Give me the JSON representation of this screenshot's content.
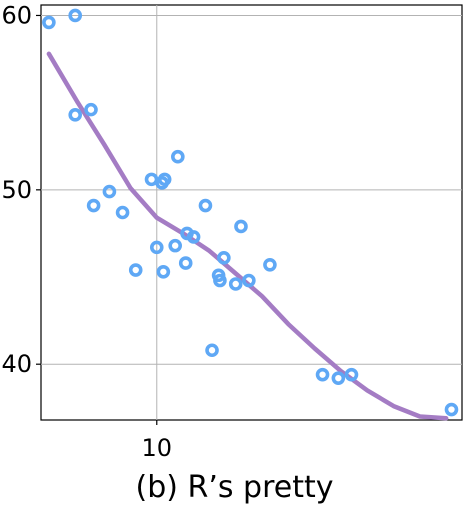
{
  "chart_data": {
    "type": "scatter",
    "caption": "(b) R’s pretty",
    "xlim": [
      5.6,
      21.6
    ],
    "ylim": [
      36.8,
      60.6
    ],
    "x_ticks": [
      10
    ],
    "y_ticks": [
      40,
      50,
      60
    ],
    "grid": true,
    "points_color": "#5fa8f5",
    "line_color": "#a47cc4",
    "points": [
      {
        "x": 5.9,
        "y": 59.6
      },
      {
        "x": 6.9,
        "y": 60.0
      },
      {
        "x": 6.9,
        "y": 54.3
      },
      {
        "x": 7.5,
        "y": 54.6
      },
      {
        "x": 7.6,
        "y": 49.1
      },
      {
        "x": 8.2,
        "y": 49.9
      },
      {
        "x": 8.7,
        "y": 48.7
      },
      {
        "x": 9.2,
        "y": 45.4
      },
      {
        "x": 9.8,
        "y": 50.6
      },
      {
        "x": 10.0,
        "y": 46.7
      },
      {
        "x": 10.2,
        "y": 50.4
      },
      {
        "x": 10.25,
        "y": 45.3
      },
      {
        "x": 10.3,
        "y": 50.6
      },
      {
        "x": 10.7,
        "y": 46.8
      },
      {
        "x": 10.8,
        "y": 51.9
      },
      {
        "x": 11.1,
        "y": 45.8
      },
      {
        "x": 11.15,
        "y": 47.5
      },
      {
        "x": 11.4,
        "y": 47.3
      },
      {
        "x": 11.85,
        "y": 49.1
      },
      {
        "x": 12.1,
        "y": 40.8
      },
      {
        "x": 12.35,
        "y": 45.1
      },
      {
        "x": 12.4,
        "y": 44.8
      },
      {
        "x": 12.55,
        "y": 46.1
      },
      {
        "x": 13.0,
        "y": 44.6
      },
      {
        "x": 13.2,
        "y": 47.9
      },
      {
        "x": 13.5,
        "y": 44.8
      },
      {
        "x": 14.3,
        "y": 45.7
      },
      {
        "x": 16.3,
        "y": 39.4
      },
      {
        "x": 16.9,
        "y": 39.2
      },
      {
        "x": 17.4,
        "y": 39.4
      },
      {
        "x": 21.2,
        "y": 37.4
      }
    ],
    "smooth_line": [
      {
        "x": 5.9,
        "y": 57.8
      },
      {
        "x": 7.0,
        "y": 55.0
      },
      {
        "x": 8.0,
        "y": 52.6
      },
      {
        "x": 9.0,
        "y": 50.1
      },
      {
        "x": 10.0,
        "y": 48.4
      },
      {
        "x": 11.0,
        "y": 47.5
      },
      {
        "x": 12.0,
        "y": 46.5
      },
      {
        "x": 13.0,
        "y": 45.2
      },
      {
        "x": 14.0,
        "y": 43.9
      },
      {
        "x": 15.0,
        "y": 42.3
      },
      {
        "x": 16.0,
        "y": 40.9
      },
      {
        "x": 17.0,
        "y": 39.6
      },
      {
        "x": 18.0,
        "y": 38.5
      },
      {
        "x": 19.0,
        "y": 37.6
      },
      {
        "x": 20.0,
        "y": 37.0
      },
      {
        "x": 21.0,
        "y": 36.9
      }
    ]
  }
}
